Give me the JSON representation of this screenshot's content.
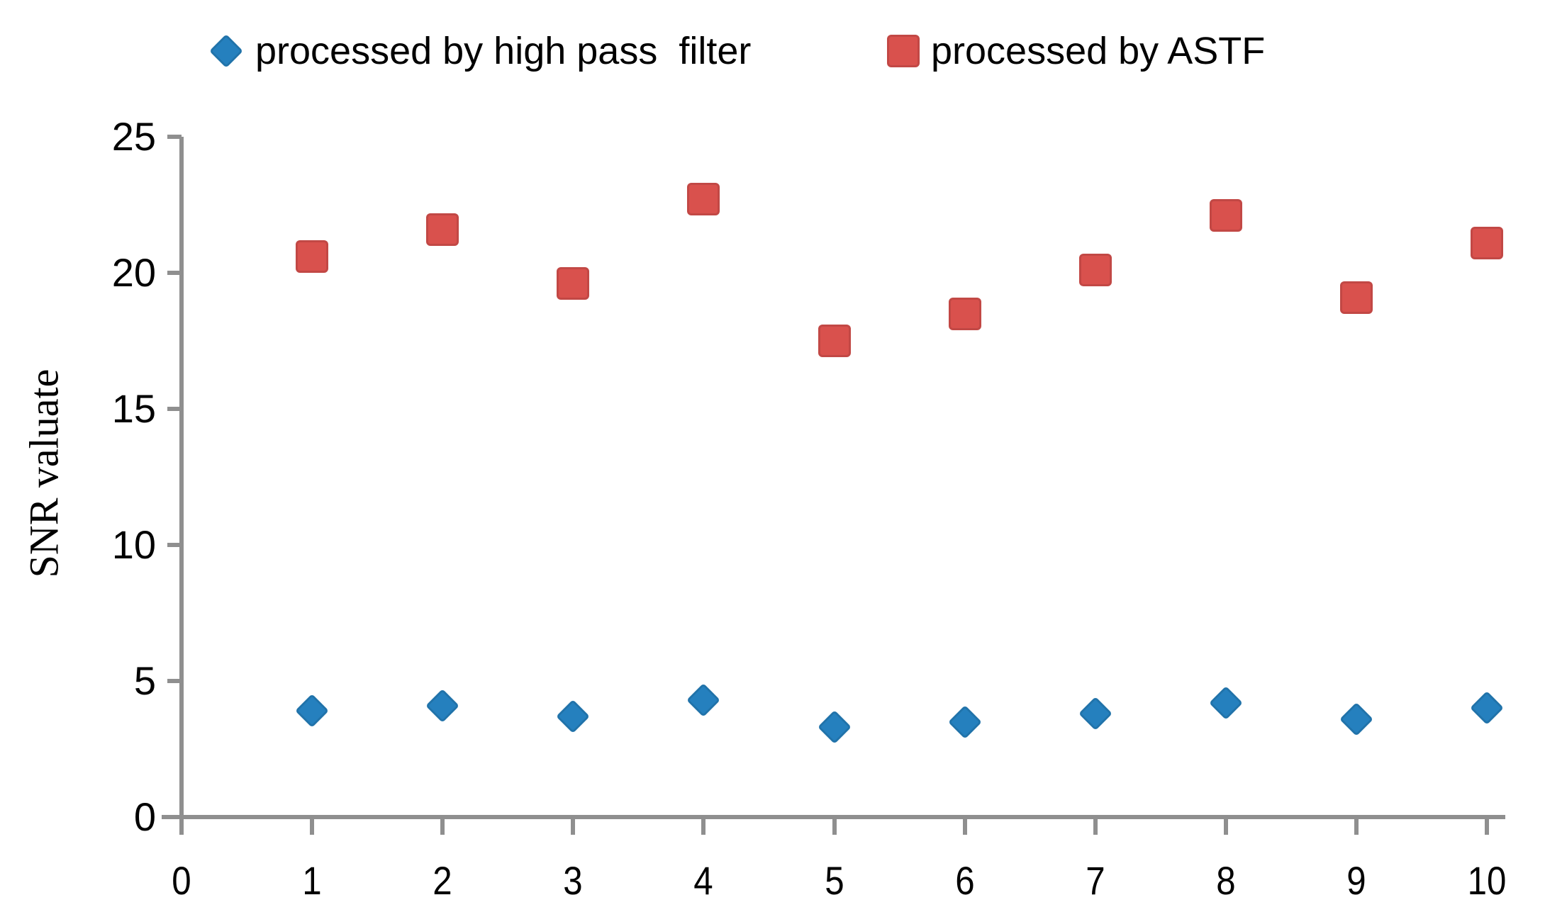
{
  "figure": {
    "background": "#ffffff",
    "axis_color": "#8F8F8F",
    "text_color": "#000000"
  },
  "legend": {
    "items": [
      {
        "label": "processed by high pass  filter",
        "marker": "diamond",
        "color": "#2580BE"
      },
      {
        "label": "processed by ASTF",
        "marker": "square",
        "color": "#D9514D"
      }
    ]
  },
  "chart_data": {
    "type": "scatter",
    "title": "",
    "xlabel": "",
    "ylabel": "SNR valuate",
    "x": [
      1,
      2,
      3,
      4,
      5,
      6,
      7,
      8,
      9,
      10
    ],
    "series": [
      {
        "name": "processed by high pass filter",
        "marker": "diamond",
        "color": "#2580BE",
        "values": [
          3.9,
          4.1,
          3.7,
          4.3,
          3.3,
          3.5,
          3.8,
          4.2,
          3.6,
          4.0
        ]
      },
      {
        "name": "processed by ASTF",
        "marker": "square",
        "color": "#D9514D",
        "values": [
          20.6,
          21.6,
          19.6,
          22.7,
          17.5,
          18.5,
          20.1,
          22.1,
          19.1,
          21.1
        ]
      }
    ],
    "xlim": [
      0,
      10
    ],
    "ylim": [
      0,
      25
    ],
    "x_ticks": [
      0,
      1,
      2,
      3,
      4,
      5,
      6,
      7,
      8,
      9,
      10
    ],
    "y_ticks": [
      0,
      5,
      10,
      15,
      20,
      25
    ],
    "grid": false,
    "legend_position": "top"
  }
}
